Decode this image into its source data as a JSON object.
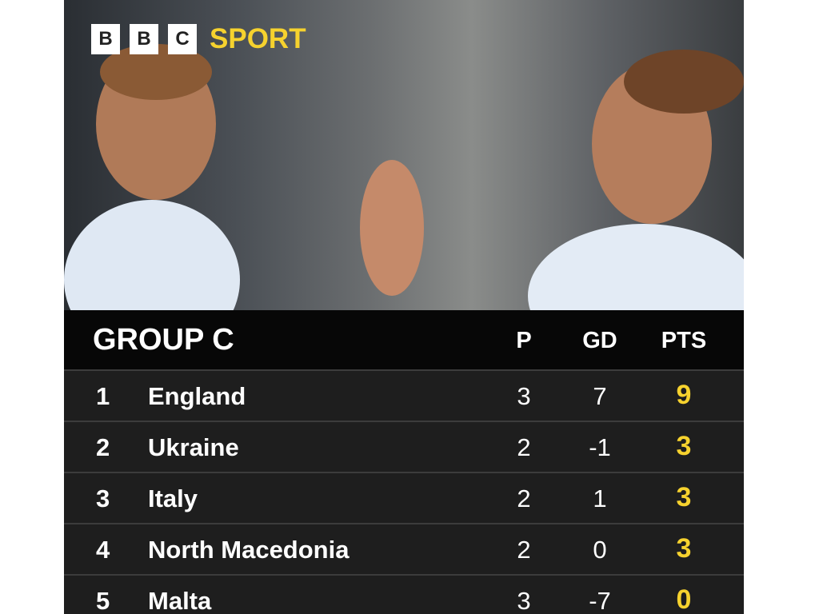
{
  "logo": {
    "letters": [
      "B",
      "B",
      "C"
    ],
    "sport": "SPORT"
  },
  "colors": {
    "accent": "#f6d22e",
    "header_bg": "#070707",
    "row_bg": "#1e1e1e"
  },
  "table": {
    "title": "GROUP C",
    "columns": {
      "p": "P",
      "gd": "GD",
      "pts": "PTS"
    },
    "rows": [
      {
        "pos": "1",
        "team": "England",
        "p": "3",
        "gd": "7",
        "pts": "9"
      },
      {
        "pos": "2",
        "team": "Ukraine",
        "p": "2",
        "gd": "-1",
        "pts": "3"
      },
      {
        "pos": "3",
        "team": "Italy",
        "p": "2",
        "gd": "1",
        "pts": "3"
      },
      {
        "pos": "4",
        "team": "North Macedonia",
        "p": "2",
        "gd": "0",
        "pts": "3"
      },
      {
        "pos": "5",
        "team": "Malta",
        "p": "3",
        "gd": "-7",
        "pts": "0"
      }
    ]
  }
}
